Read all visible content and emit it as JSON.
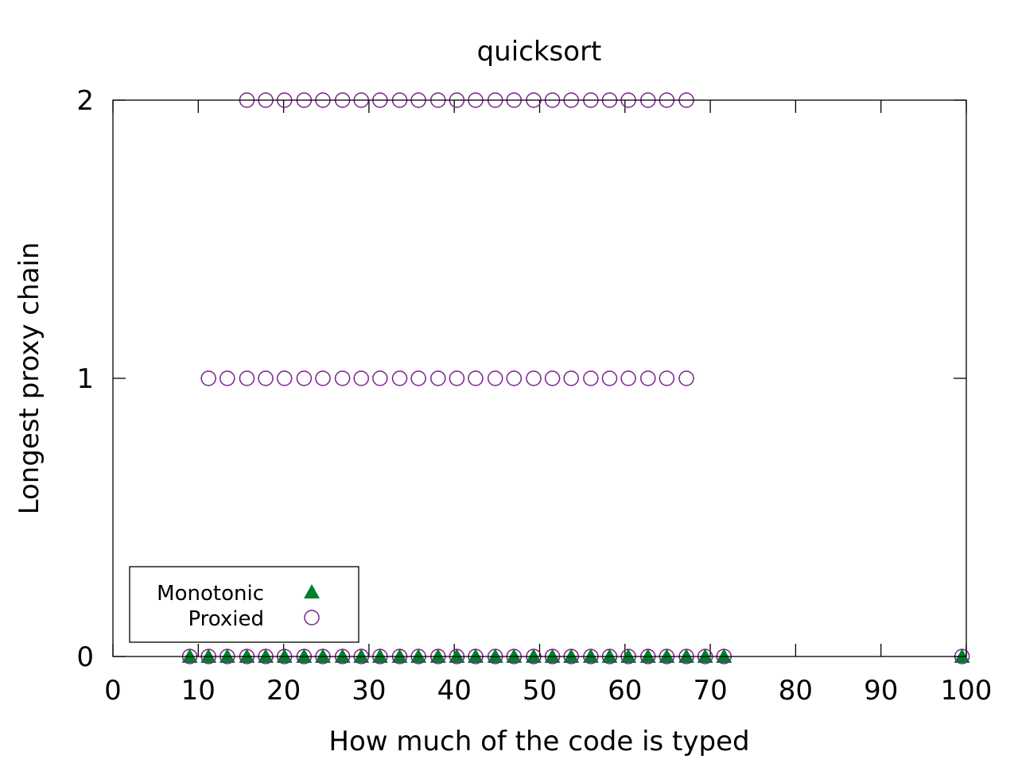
{
  "chart_data": {
    "type": "scatter",
    "title": "quicksort",
    "xlabel": "How much of the code is typed",
    "ylabel": "Longest proxy chain",
    "xlim": [
      0,
      100
    ],
    "ylim": [
      0,
      2
    ],
    "x_ticks": [
      "0",
      "10",
      "20",
      "30",
      "40",
      "50",
      "60",
      "70",
      "80",
      "90",
      "100"
    ],
    "y_ticks": [
      "0",
      "1",
      "2"
    ],
    "grid": false,
    "legend_position": "bottom-left",
    "series": [
      {
        "name": "Monotonic",
        "marker": "filled-triangle",
        "color": "#00802b",
        "points": [
          [
            9.0,
            0
          ],
          [
            11.2,
            0
          ],
          [
            13.4,
            0
          ],
          [
            15.7,
            0
          ],
          [
            17.9,
            0
          ],
          [
            20.1,
            0
          ],
          [
            22.4,
            0
          ],
          [
            24.6,
            0
          ],
          [
            26.9,
            0
          ],
          [
            29.1,
            0
          ],
          [
            31.3,
            0
          ],
          [
            33.6,
            0
          ],
          [
            35.8,
            0
          ],
          [
            38.1,
            0
          ],
          [
            40.3,
            0
          ],
          [
            42.5,
            0
          ],
          [
            44.8,
            0
          ],
          [
            47.0,
            0
          ],
          [
            49.3,
            0
          ],
          [
            51.5,
            0
          ],
          [
            53.7,
            0
          ],
          [
            56.0,
            0
          ],
          [
            58.2,
            0
          ],
          [
            60.4,
            0
          ],
          [
            62.7,
            0
          ],
          [
            64.9,
            0
          ],
          [
            67.2,
            0
          ],
          [
            69.4,
            0
          ],
          [
            71.6,
            0
          ],
          [
            99.5,
            0
          ]
        ]
      },
      {
        "name": "Proxied",
        "marker": "open-circle",
        "color": "#7b1f8f",
        "points": [
          [
            9.0,
            0
          ],
          [
            11.2,
            0
          ],
          [
            13.4,
            0
          ],
          [
            15.7,
            0
          ],
          [
            17.9,
            0
          ],
          [
            20.1,
            0
          ],
          [
            22.4,
            0
          ],
          [
            24.6,
            0
          ],
          [
            26.9,
            0
          ],
          [
            29.1,
            0
          ],
          [
            31.3,
            0
          ],
          [
            33.6,
            0
          ],
          [
            35.8,
            0
          ],
          [
            38.1,
            0
          ],
          [
            40.3,
            0
          ],
          [
            42.5,
            0
          ],
          [
            44.8,
            0
          ],
          [
            47.0,
            0
          ],
          [
            49.3,
            0
          ],
          [
            51.5,
            0
          ],
          [
            53.7,
            0
          ],
          [
            56.0,
            0
          ],
          [
            58.2,
            0
          ],
          [
            60.4,
            0
          ],
          [
            62.7,
            0
          ],
          [
            64.9,
            0
          ],
          [
            67.2,
            0
          ],
          [
            69.4,
            0
          ],
          [
            71.6,
            0
          ],
          [
            99.5,
            0
          ],
          [
            11.2,
            1
          ],
          [
            13.4,
            1
          ],
          [
            15.7,
            1
          ],
          [
            17.9,
            1
          ],
          [
            20.1,
            1
          ],
          [
            22.4,
            1
          ],
          [
            24.6,
            1
          ],
          [
            26.9,
            1
          ],
          [
            29.1,
            1
          ],
          [
            31.3,
            1
          ],
          [
            33.6,
            1
          ],
          [
            35.8,
            1
          ],
          [
            38.1,
            1
          ],
          [
            40.3,
            1
          ],
          [
            42.5,
            1
          ],
          [
            44.8,
            1
          ],
          [
            47.0,
            1
          ],
          [
            49.3,
            1
          ],
          [
            51.5,
            1
          ],
          [
            53.7,
            1
          ],
          [
            56.0,
            1
          ],
          [
            58.2,
            1
          ],
          [
            60.4,
            1
          ],
          [
            62.7,
            1
          ],
          [
            64.9,
            1
          ],
          [
            67.2,
            1
          ],
          [
            15.7,
            2
          ],
          [
            17.9,
            2
          ],
          [
            20.1,
            2
          ],
          [
            22.4,
            2
          ],
          [
            24.6,
            2
          ],
          [
            26.9,
            2
          ],
          [
            29.1,
            2
          ],
          [
            31.3,
            2
          ],
          [
            33.6,
            2
          ],
          [
            35.8,
            2
          ],
          [
            38.1,
            2
          ],
          [
            40.3,
            2
          ],
          [
            42.5,
            2
          ],
          [
            44.8,
            2
          ],
          [
            47.0,
            2
          ],
          [
            49.3,
            2
          ],
          [
            51.5,
            2
          ],
          [
            53.7,
            2
          ],
          [
            56.0,
            2
          ],
          [
            58.2,
            2
          ],
          [
            60.4,
            2
          ],
          [
            62.7,
            2
          ],
          [
            64.9,
            2
          ],
          [
            67.2,
            2
          ]
        ]
      }
    ]
  }
}
